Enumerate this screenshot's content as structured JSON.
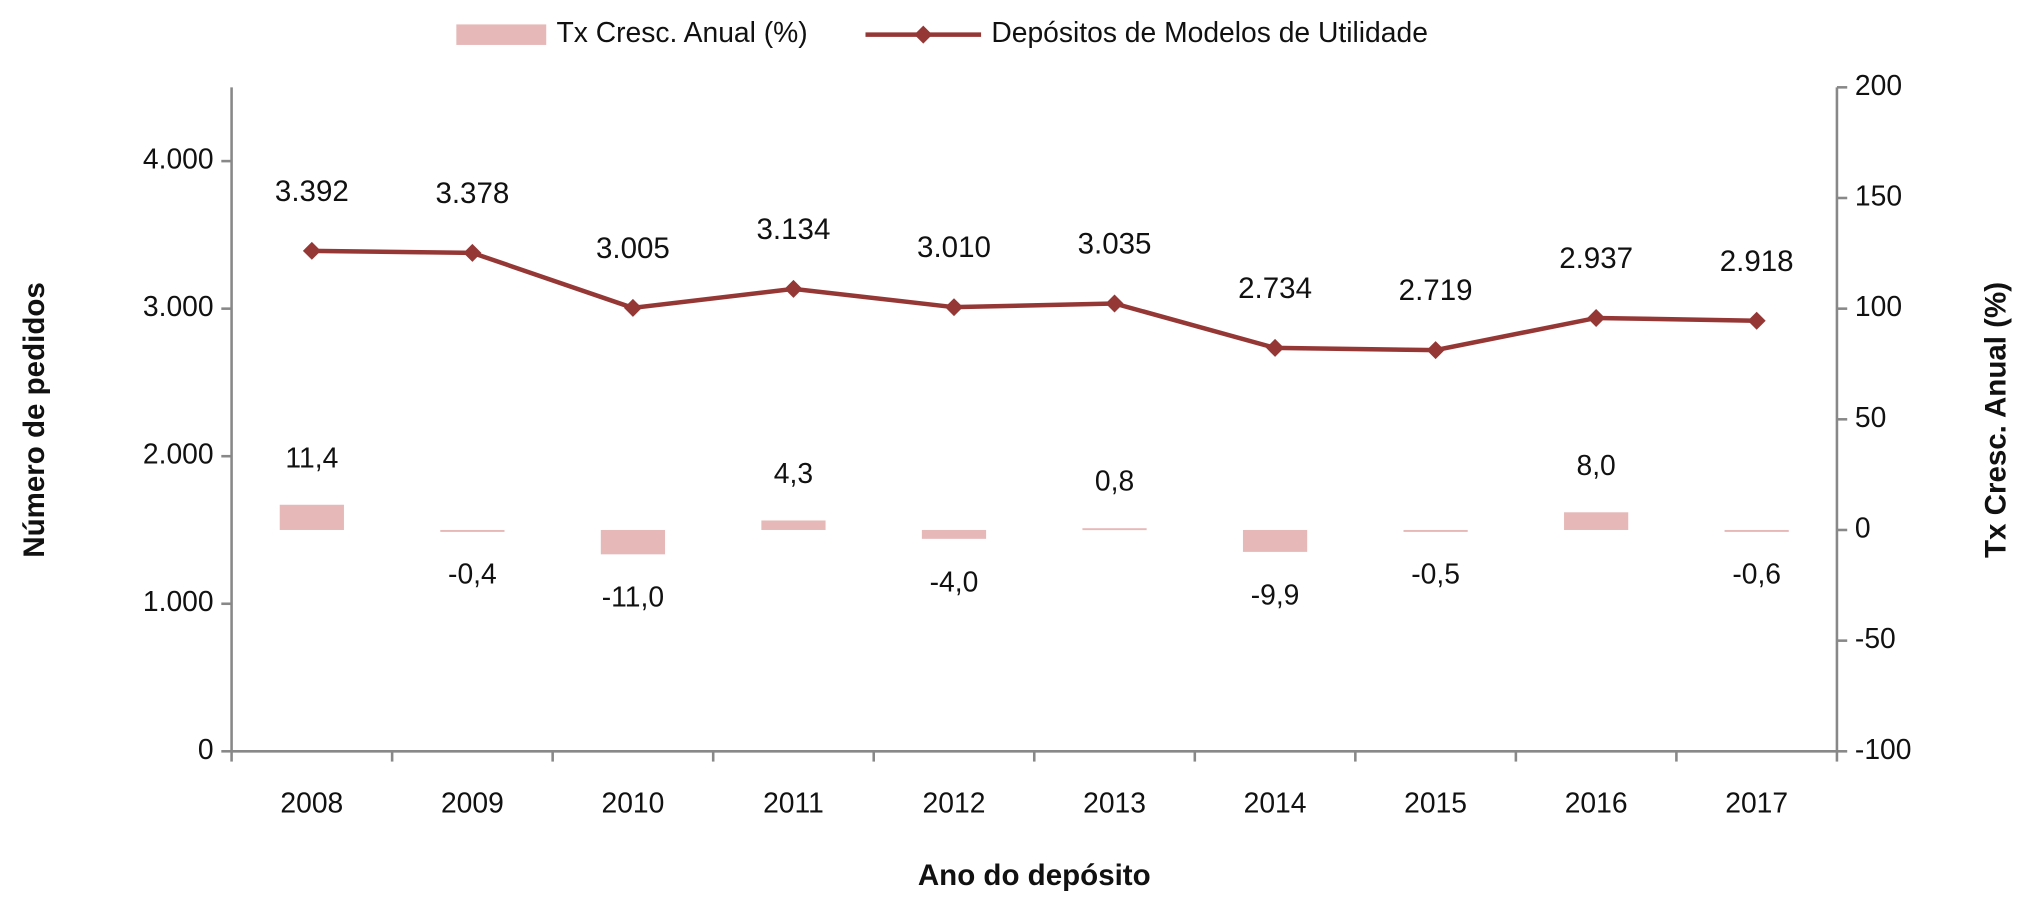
{
  "chart_data": {
    "type": "bar-line",
    "x_label": "Ano do depósito",
    "y_label": "Número de pedidos",
    "y2_label": "Tx Cresc. Anual (%)",
    "categories": [
      "2008",
      "2009",
      "2010",
      "2011",
      "2012",
      "2013",
      "2014",
      "2015",
      "2016",
      "2017"
    ],
    "series": [
      {
        "name": "Tx Cresc. Anual (%)",
        "type": "bar",
        "axis": "y2",
        "color": "#e6b9b8",
        "values": [
          11.4,
          -0.4,
          -11.0,
          4.3,
          -4.0,
          0.8,
          -9.9,
          -0.5,
          8.0,
          -0.6
        ],
        "value_labels": [
          "11,4",
          "-0,4",
          "-11,0",
          "4,3",
          "-4,0",
          "0,8",
          "-9,9",
          "-0,5",
          "8,0",
          "-0,6"
        ]
      },
      {
        "name": "Depósitos de Modelos de Utilidade",
        "type": "line",
        "axis": "y",
        "color": "#953735",
        "values": [
          3392,
          3378,
          3005,
          3134,
          3010,
          3035,
          2734,
          2719,
          2937,
          2918
        ],
        "value_labels": [
          "3.392",
          "3.378",
          "3.005",
          "3.134",
          "3.010",
          "3.035",
          "2.734",
          "2.719",
          "2.937",
          "2.918"
        ]
      }
    ],
    "ylim": [
      0,
      4500
    ],
    "yticks": [
      0,
      {
        "value": 1000,
        "label": "1.000"
      },
      {
        "value": 2000,
        "label": "2.000"
      },
      {
        "value": 3000,
        "label": "3.000"
      },
      {
        "value": 4000,
        "label": "4.000"
      }
    ],
    "y2lim": [
      -100,
      200
    ],
    "y2ticks": [
      -100,
      -50,
      0,
      50,
      100,
      150,
      200
    ],
    "legend": "top",
    "grid": false
  }
}
